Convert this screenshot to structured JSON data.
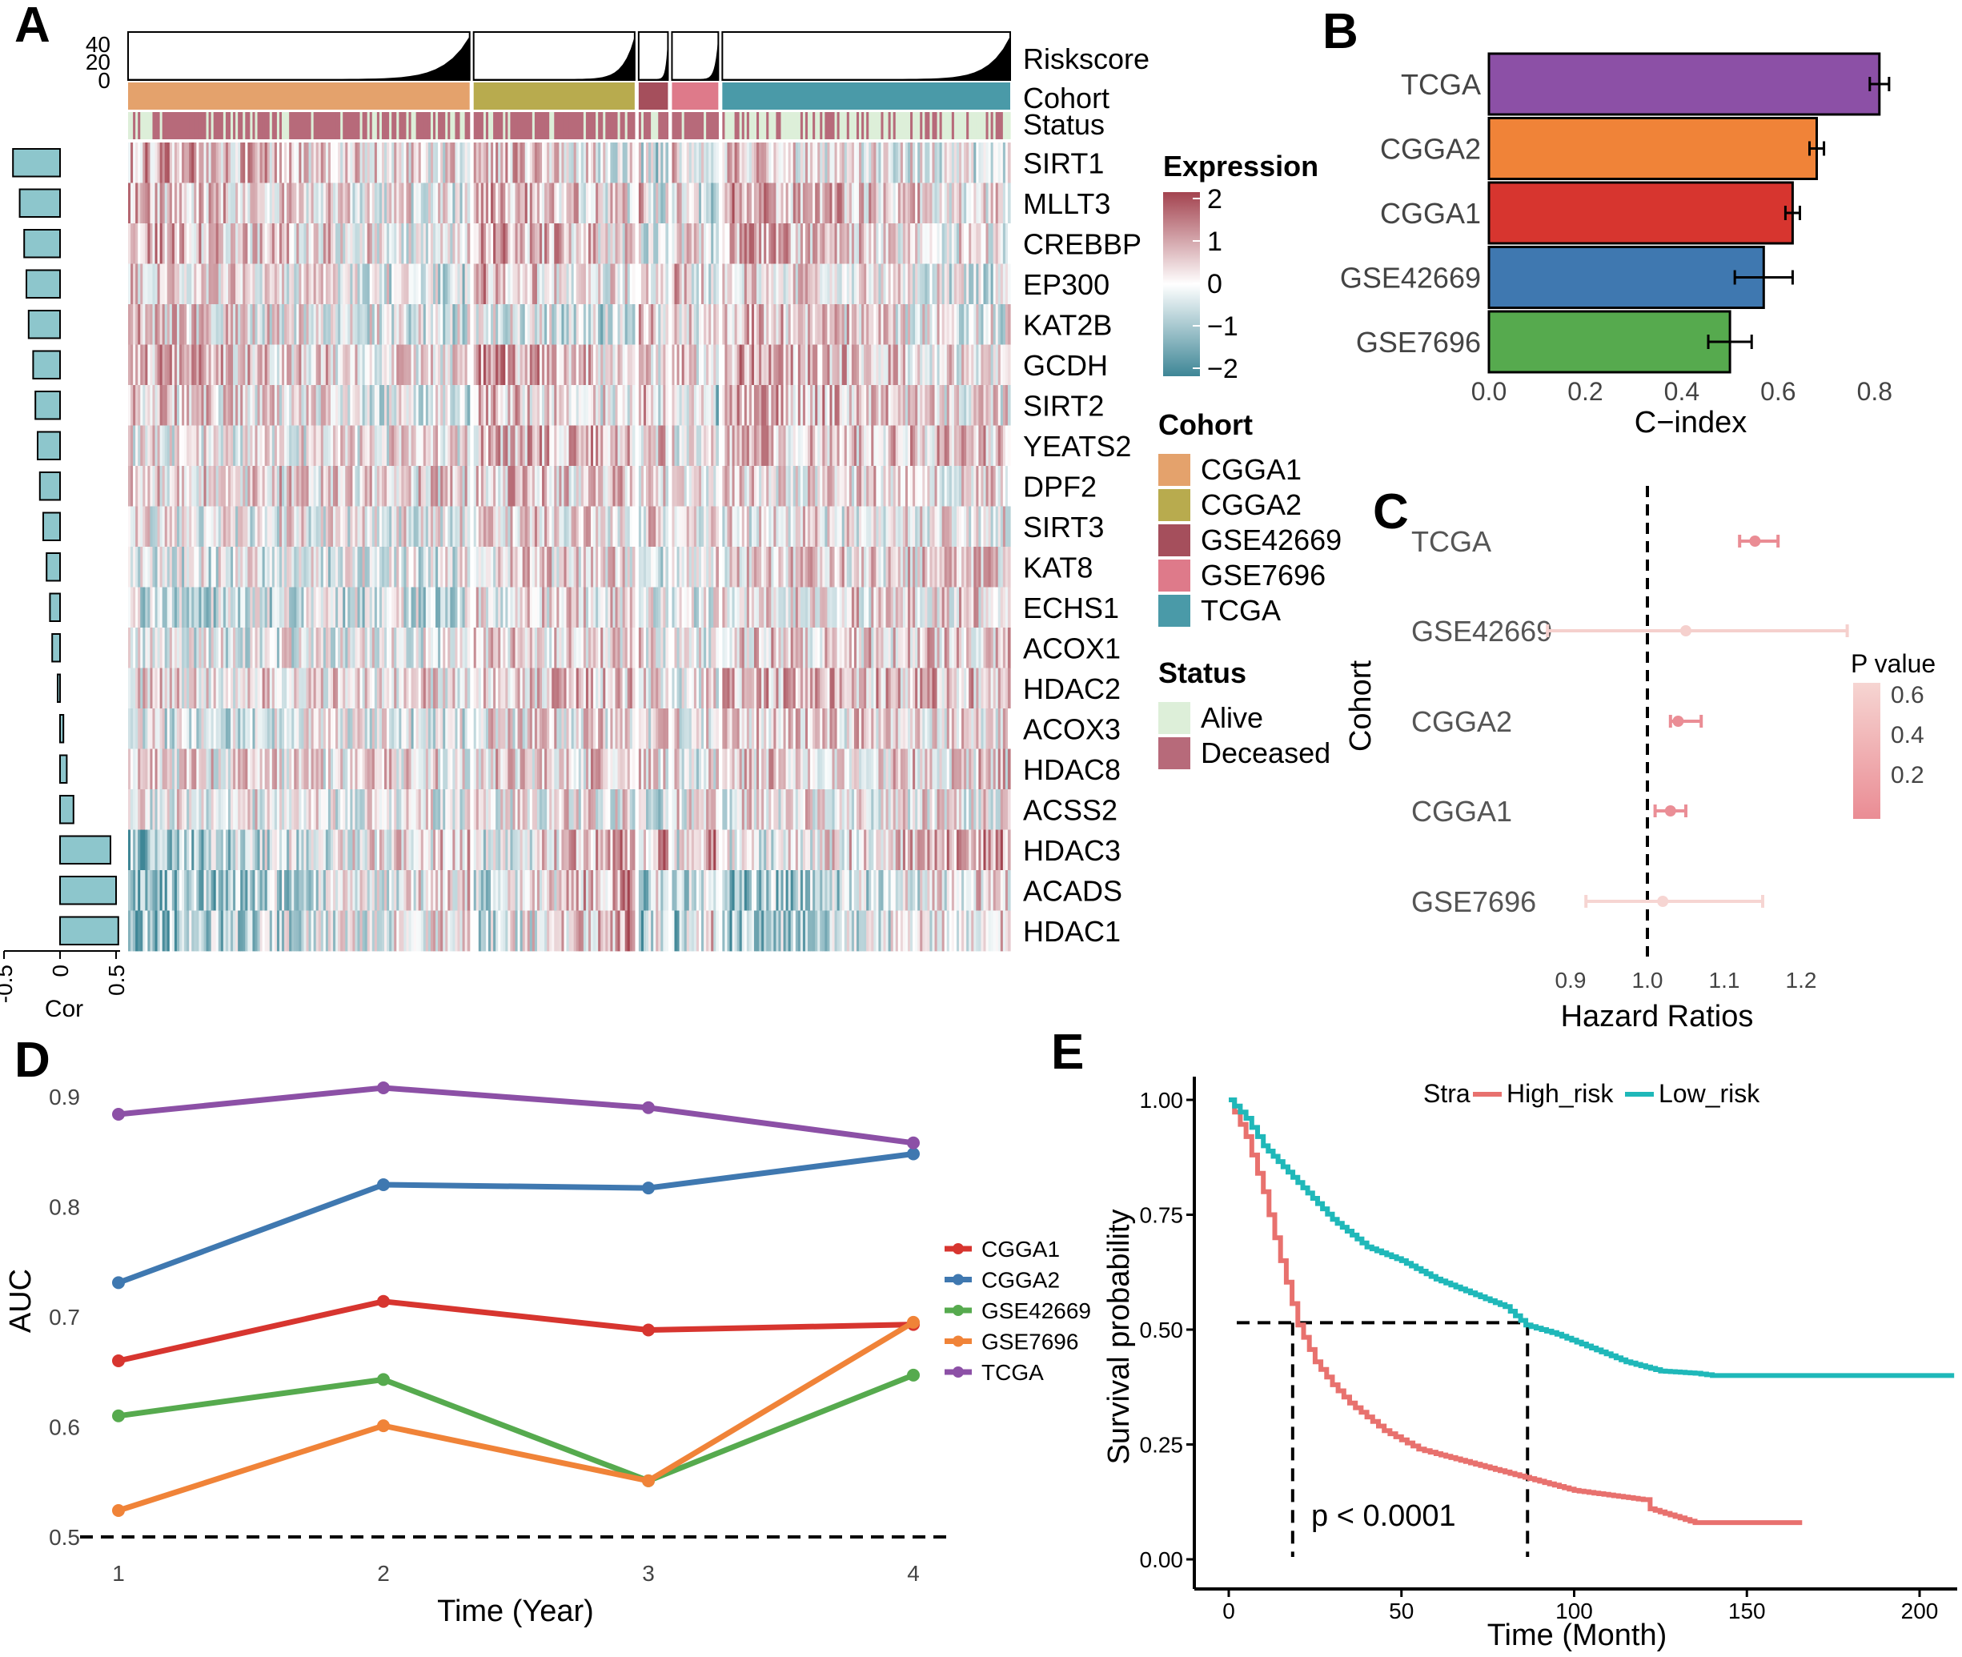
{
  "figure": {
    "panel_letters": [
      "A",
      "B",
      "C",
      "D",
      "E"
    ]
  },
  "colors": {
    "cohort": {
      "CGGA1": "#E4A26C",
      "CGGA2": "#B8AB4E",
      "GSE42669": "#A54F5C",
      "GSE7696": "#DE7A8A",
      "TCGA": "#4A9AA8"
    },
    "status": {
      "Alive": "#DDEFD9",
      "Deceased": "#B76A7A"
    },
    "expr_high": "#A3434F",
    "expr_low": "#3E8696",
    "expr_mid": "#FFFFFF",
    "bar_cor": "#8DC6CC",
    "line": {
      "CGGA1": "#D7352F",
      "CGGA2": "#3F78B0",
      "GSE42669": "#56AA4E",
      "GSE7696": "#F08338",
      "TCGA": "#8C50A6"
    },
    "km": {
      "High_risk": "#E8716E",
      "Low_risk": "#1FB8B9"
    },
    "forest": {
      "hi": "#EA8C94",
      "lo": "#F6D5D2"
    }
  },
  "chart_data": [
    {
      "panel": "A",
      "type": "heatmap",
      "cohort_order": [
        "CGGA1",
        "CGGA2",
        "GSE42669",
        "GSE7696",
        "TCGA"
      ],
      "cohort_sizes": [
        140,
        66,
        12,
        19,
        118
      ],
      "genes": [
        "SIRT1",
        "MLLT3",
        "CREBBP",
        "EP300",
        "KAT2B",
        "GCDH",
        "SIRT2",
        "YEATS2",
        "DPF2",
        "SIRT3",
        "KAT8",
        "ECHS1",
        "ACOX1",
        "HDAC2",
        "ACOX3",
        "HDAC8",
        "ACSS2",
        "HDAC3",
        "ACADS",
        "HDAC1"
      ],
      "cor": [
        -0.42,
        -0.36,
        -0.32,
        -0.3,
        -0.28,
        -0.24,
        -0.22,
        -0.2,
        -0.18,
        -0.15,
        -0.12,
        -0.09,
        -0.07,
        -0.02,
        0.03,
        0.06,
        0.12,
        0.45,
        0.5,
        0.52
      ],
      "cor_axis": {
        "label": "Cor",
        "ticks": [
          "-0.5",
          "0",
          "0.5"
        ],
        "range": [
          -0.55,
          0.55
        ]
      },
      "riskscore": {
        "label": "Riskscore",
        "ticks": [
          "40",
          "20",
          "0"
        ],
        "max": 45
      },
      "annotation_labels": {
        "cohort": "Cohort",
        "status": "Status"
      },
      "legend": {
        "expression_title": "Expression",
        "expression_ticks": [
          "2",
          "1",
          "0",
          "−1",
          "−2"
        ],
        "cohort_title": "Cohort",
        "cohort_items": [
          "CGGA1",
          "CGGA2",
          "GSE42669",
          "GSE7696",
          "TCGA"
        ],
        "status_title": "Status",
        "status_items": [
          "Alive",
          "Deceased"
        ]
      }
    },
    {
      "panel": "B",
      "type": "bar",
      "orientation": "horizontal",
      "categories": [
        "TCGA",
        "CGGA2",
        "CGGA1",
        "GSE42669",
        "GSE7696"
      ],
      "values": [
        0.81,
        0.68,
        0.63,
        0.57,
        0.5
      ],
      "errors": [
        0.02,
        0.015,
        0.015,
        0.06,
        0.045
      ],
      "bar_colors": [
        "#8C50A6",
        "#F08338",
        "#D7352F",
        "#3F78B0",
        "#56AA4E"
      ],
      "xlabel": "C−index",
      "xlim": [
        0,
        0.88
      ],
      "xticks": [
        0.0,
        0.2,
        0.4,
        0.6,
        0.8
      ],
      "xtick_labels": [
        "0.0",
        "0.2",
        "0.4",
        "0.6",
        "0.8"
      ]
    },
    {
      "panel": "C",
      "type": "scatter",
      "subtype": "forest",
      "categories": [
        "TCGA",
        "GSE42669",
        "CGGA2",
        "CGGA1",
        "GSE7696"
      ],
      "hr": [
        1.14,
        1.05,
        1.04,
        1.03,
        1.02
      ],
      "lower": [
        1.12,
        0.87,
        1.03,
        1.01,
        0.92
      ],
      "upper": [
        1.17,
        1.26,
        1.07,
        1.05,
        1.15
      ],
      "p_values": [
        0.001,
        0.65,
        0.04,
        0.05,
        0.7
      ],
      "xlabel": "Hazard Ratios",
      "ylabel": "Cohort",
      "xlim": [
        0.85,
        1.3
      ],
      "xticks": [
        0.9,
        1.0,
        1.1,
        1.2
      ],
      "xtick_labels": [
        "0.9",
        "1.0",
        "1.1",
        "1.2"
      ],
      "ref_line": 1.0,
      "legend": {
        "title": "P value",
        "ticks": [
          0.6,
          0.4,
          0.2
        ],
        "tick_labels": [
          "0.6",
          "0.4",
          "0.2"
        ],
        "range": [
          0.03,
          0.7
        ]
      }
    },
    {
      "panel": "D",
      "type": "line",
      "x": [
        1,
        2,
        3,
        4
      ],
      "series": [
        {
          "name": "CGGA1",
          "values": [
            0.66,
            0.714,
            0.688,
            0.693
          ]
        },
        {
          "name": "CGGA2",
          "values": [
            0.731,
            0.82,
            0.817,
            0.848
          ]
        },
        {
          "name": "GSE42669",
          "values": [
            0.61,
            0.643,
            0.551,
            0.647
          ]
        },
        {
          "name": "GSE7696",
          "values": [
            0.524,
            0.601,
            0.551,
            0.695
          ]
        },
        {
          "name": "TCGA",
          "values": [
            0.884,
            0.908,
            0.89,
            0.858
          ]
        }
      ],
      "xlabel": "Time (Year)",
      "ylabel": "AUC",
      "xlim": [
        0.9,
        4.15
      ],
      "ylim": [
        0.49,
        0.915
      ],
      "xticks": [
        1,
        2,
        3,
        4
      ],
      "xtick_labels": [
        "1",
        "2",
        "3",
        "4"
      ],
      "yticks": [
        0.5,
        0.6,
        0.7,
        0.8,
        0.9
      ],
      "ytick_labels": [
        "0.5",
        "0.6",
        "0.7",
        "0.8",
        "0.9"
      ],
      "ref_line": 0.5,
      "legend_position": "right"
    },
    {
      "panel": "E",
      "type": "line",
      "subtype": "kaplan-meier",
      "series": [
        {
          "name": "High_risk",
          "x": [
            0,
            5,
            10,
            15,
            20,
            25,
            30,
            35,
            40,
            45,
            50,
            55,
            60,
            70,
            80,
            90,
            100,
            110,
            120,
            122,
            135,
            150,
            166
          ],
          "values": [
            1.0,
            0.92,
            0.8,
            0.65,
            0.51,
            0.43,
            0.38,
            0.34,
            0.31,
            0.28,
            0.26,
            0.24,
            0.23,
            0.21,
            0.19,
            0.17,
            0.15,
            0.14,
            0.13,
            0.11,
            0.08,
            0.08,
            0.08
          ]
        },
        {
          "name": "Low_risk",
          "x": [
            0,
            5,
            10,
            20,
            30,
            40,
            50,
            60,
            70,
            80,
            86,
            95,
            105,
            115,
            125,
            135,
            140,
            150,
            175,
            210
          ],
          "values": [
            1.0,
            0.96,
            0.9,
            0.82,
            0.74,
            0.68,
            0.65,
            0.61,
            0.58,
            0.55,
            0.51,
            0.49,
            0.46,
            0.43,
            0.41,
            0.405,
            0.4,
            0.4,
            0.4,
            0.4
          ]
        }
      ],
      "xlabel": "Time (Month)",
      "ylabel": "Survival probability",
      "xlim": [
        -5,
        210
      ],
      "ylim": [
        -0.01,
        1.02
      ],
      "xticks": [
        0,
        50,
        100,
        150,
        200
      ],
      "xtick_labels": [
        "0",
        "50",
        "100",
        "150",
        "200"
      ],
      "yticks": [
        0.0,
        0.25,
        0.5,
        0.75,
        1.0
      ],
      "ytick_labels": [
        "0.00",
        "0.25",
        "0.50",
        "0.75",
        "1.00"
      ],
      "median_line": 0.515,
      "medians": [
        18.5,
        86.5
      ],
      "legend_title": "Stra",
      "legend_items": [
        "High_risk",
        "Low_risk"
      ],
      "annotation": "p < 0.0001"
    }
  ]
}
